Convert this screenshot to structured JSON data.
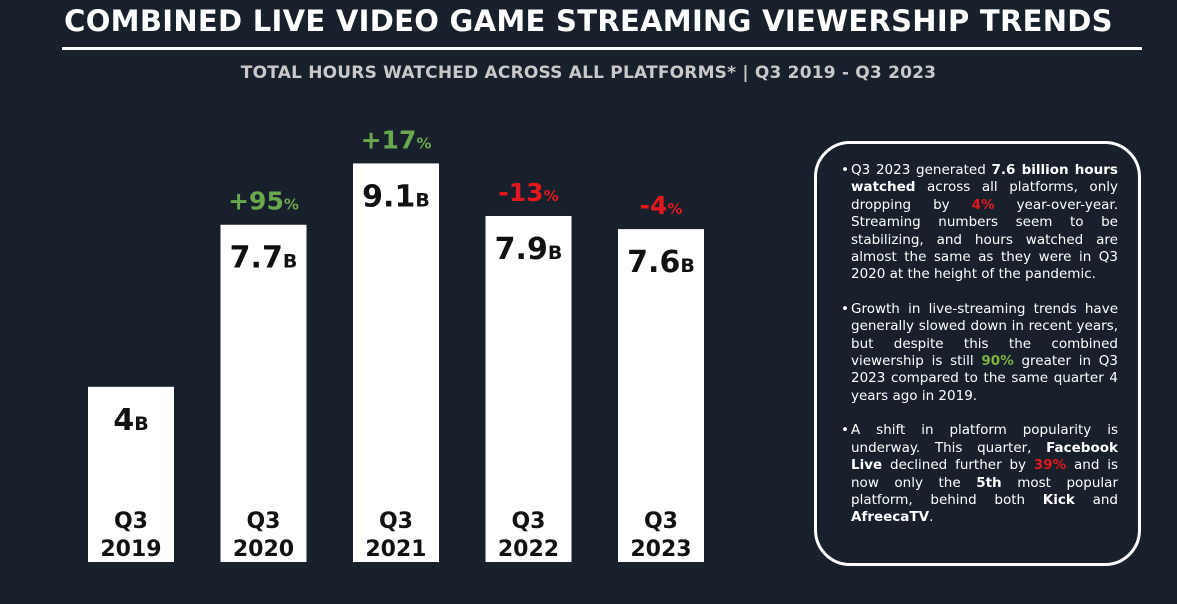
{
  "title": "COMBINED LIVE VIDEO GAME STREAMING VIEWERSHIP TRENDS",
  "subtitle": "TOTAL HOURS WATCHED ACROSS ALL PLATFORMS* | Q3 2019 - Q3 2023",
  "colors": {
    "background": "#17202b",
    "bar": "#ffffff",
    "increase": "#6aa84f",
    "decrease": "#e3171d"
  },
  "chart_data": {
    "type": "bar",
    "title": "TOTAL HOURS WATCHED ACROSS ALL PLATFORMS* | Q3 2019 - Q3 2023",
    "categories": [
      "Q3 2019",
      "Q3 2020",
      "Q3 2021",
      "Q3 2022",
      "Q3 2023"
    ],
    "category_lines": [
      [
        "Q3",
        "2019"
      ],
      [
        "Q3",
        "2020"
      ],
      [
        "Q3",
        "2021"
      ],
      [
        "Q3",
        "2022"
      ],
      [
        "Q3",
        "2023"
      ]
    ],
    "values": [
      4,
      7.7,
      9.1,
      7.9,
      7.6
    ],
    "value_labels": [
      "4",
      "7.7",
      "9.1",
      "7.9",
      "7.6"
    ],
    "value_unit": "B",
    "changes": [
      null,
      "+95",
      "+17",
      "-13",
      "-4"
    ],
    "change_directions": [
      null,
      "up",
      "up",
      "down",
      "down"
    ],
    "change_unit": "%",
    "ylim": [
      0,
      10.5
    ],
    "grid": false,
    "legend": "none"
  },
  "info": {
    "bullets": [
      [
        {
          "t": "Q3 2023 generated ",
          "s": ""
        },
        {
          "t": "7.6 billion hours watched",
          "s": "b"
        },
        {
          "t": " across all platforms, only dropping by ",
          "s": ""
        },
        {
          "t": "4%",
          "s": "red"
        },
        {
          "t": " year-over-year. Streaming numbers seem to be stabilizing, and hours watched are almost the same as they were in Q3 2020 at the height of the pandemic.",
          "s": ""
        }
      ],
      [
        {
          "t": "Growth in live-streaming trends have generally slowed down in recent years, but despite this the combined viewership is still ",
          "s": ""
        },
        {
          "t": "90%",
          "s": "green"
        },
        {
          "t": " greater in Q3 2023 compared to the same quarter 4 years ago in 2019.",
          "s": ""
        }
      ],
      [
        {
          "t": "A shift in platform popularity is underway. This quarter, ",
          "s": ""
        },
        {
          "t": "Facebook Live",
          "s": "b"
        },
        {
          "t": " declined further by ",
          "s": ""
        },
        {
          "t": "39%",
          "s": "red"
        },
        {
          "t": " and is now only the ",
          "s": ""
        },
        {
          "t": "5th",
          "s": "b"
        },
        {
          "t": " most popular platform, behind both ",
          "s": ""
        },
        {
          "t": "Kick",
          "s": "b"
        },
        {
          "t": " and ",
          "s": ""
        },
        {
          "t": "AfreecaTV",
          "s": "b"
        },
        {
          "t": ".",
          "s": ""
        }
      ]
    ]
  }
}
